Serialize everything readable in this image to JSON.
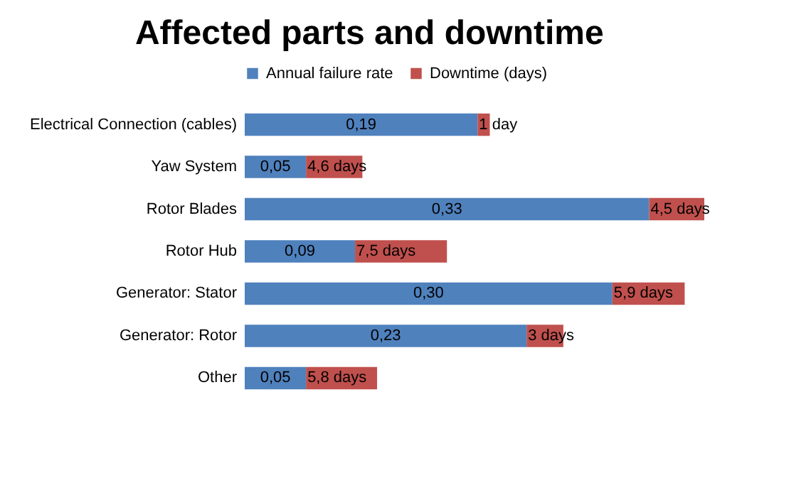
{
  "chart_data": {
    "type": "bar",
    "orientation": "horizontal",
    "stacked": true,
    "title": "Affected parts and downtime",
    "categories": [
      "Electrical Connection (cables)",
      "Yaw System",
      "Rotor Blades",
      "Rotor Hub",
      "Generator: Stator",
      "Generator: Rotor",
      "Other"
    ],
    "series": [
      {
        "name": "Annual failure rate",
        "color": "#4f81bd",
        "values": [
          0.19,
          0.05,
          0.33,
          0.09,
          0.3,
          0.23,
          0.05
        ],
        "value_labels": [
          "0,19",
          "0,05",
          "0,33",
          "0,09",
          "0,30",
          "0,23",
          "0,05"
        ]
      },
      {
        "name": "Downtime (days)",
        "color": "#c0504d",
        "values": [
          0.01,
          0.046,
          0.045,
          0.075,
          0.059,
          0.03,
          0.058
        ]
      }
    ],
    "annotations": [
      {
        "text": "1 day",
        "x": 0.19,
        "y": "Electrical Connection (cables)"
      },
      {
        "text": "4,6 days",
        "x": 0.05,
        "y": "Yaw System"
      },
      {
        "text": "4,5 days",
        "x": 0.33,
        "y": "Rotor Blades"
      },
      {
        "text": "7,5 days",
        "x": 0.09,
        "y": "Rotor Hub"
      },
      {
        "text": "5,9 days",
        "x": 0.3,
        "y": "Generator: Stator"
      },
      {
        "text": "3 days",
        "x": 0.23,
        "y": "Generator: Rotor"
      },
      {
        "text": "5,8 days",
        "x": 0.05,
        "y": "Other"
      }
    ],
    "legend": "top",
    "grid": false,
    "tick_labels": "y"
  }
}
